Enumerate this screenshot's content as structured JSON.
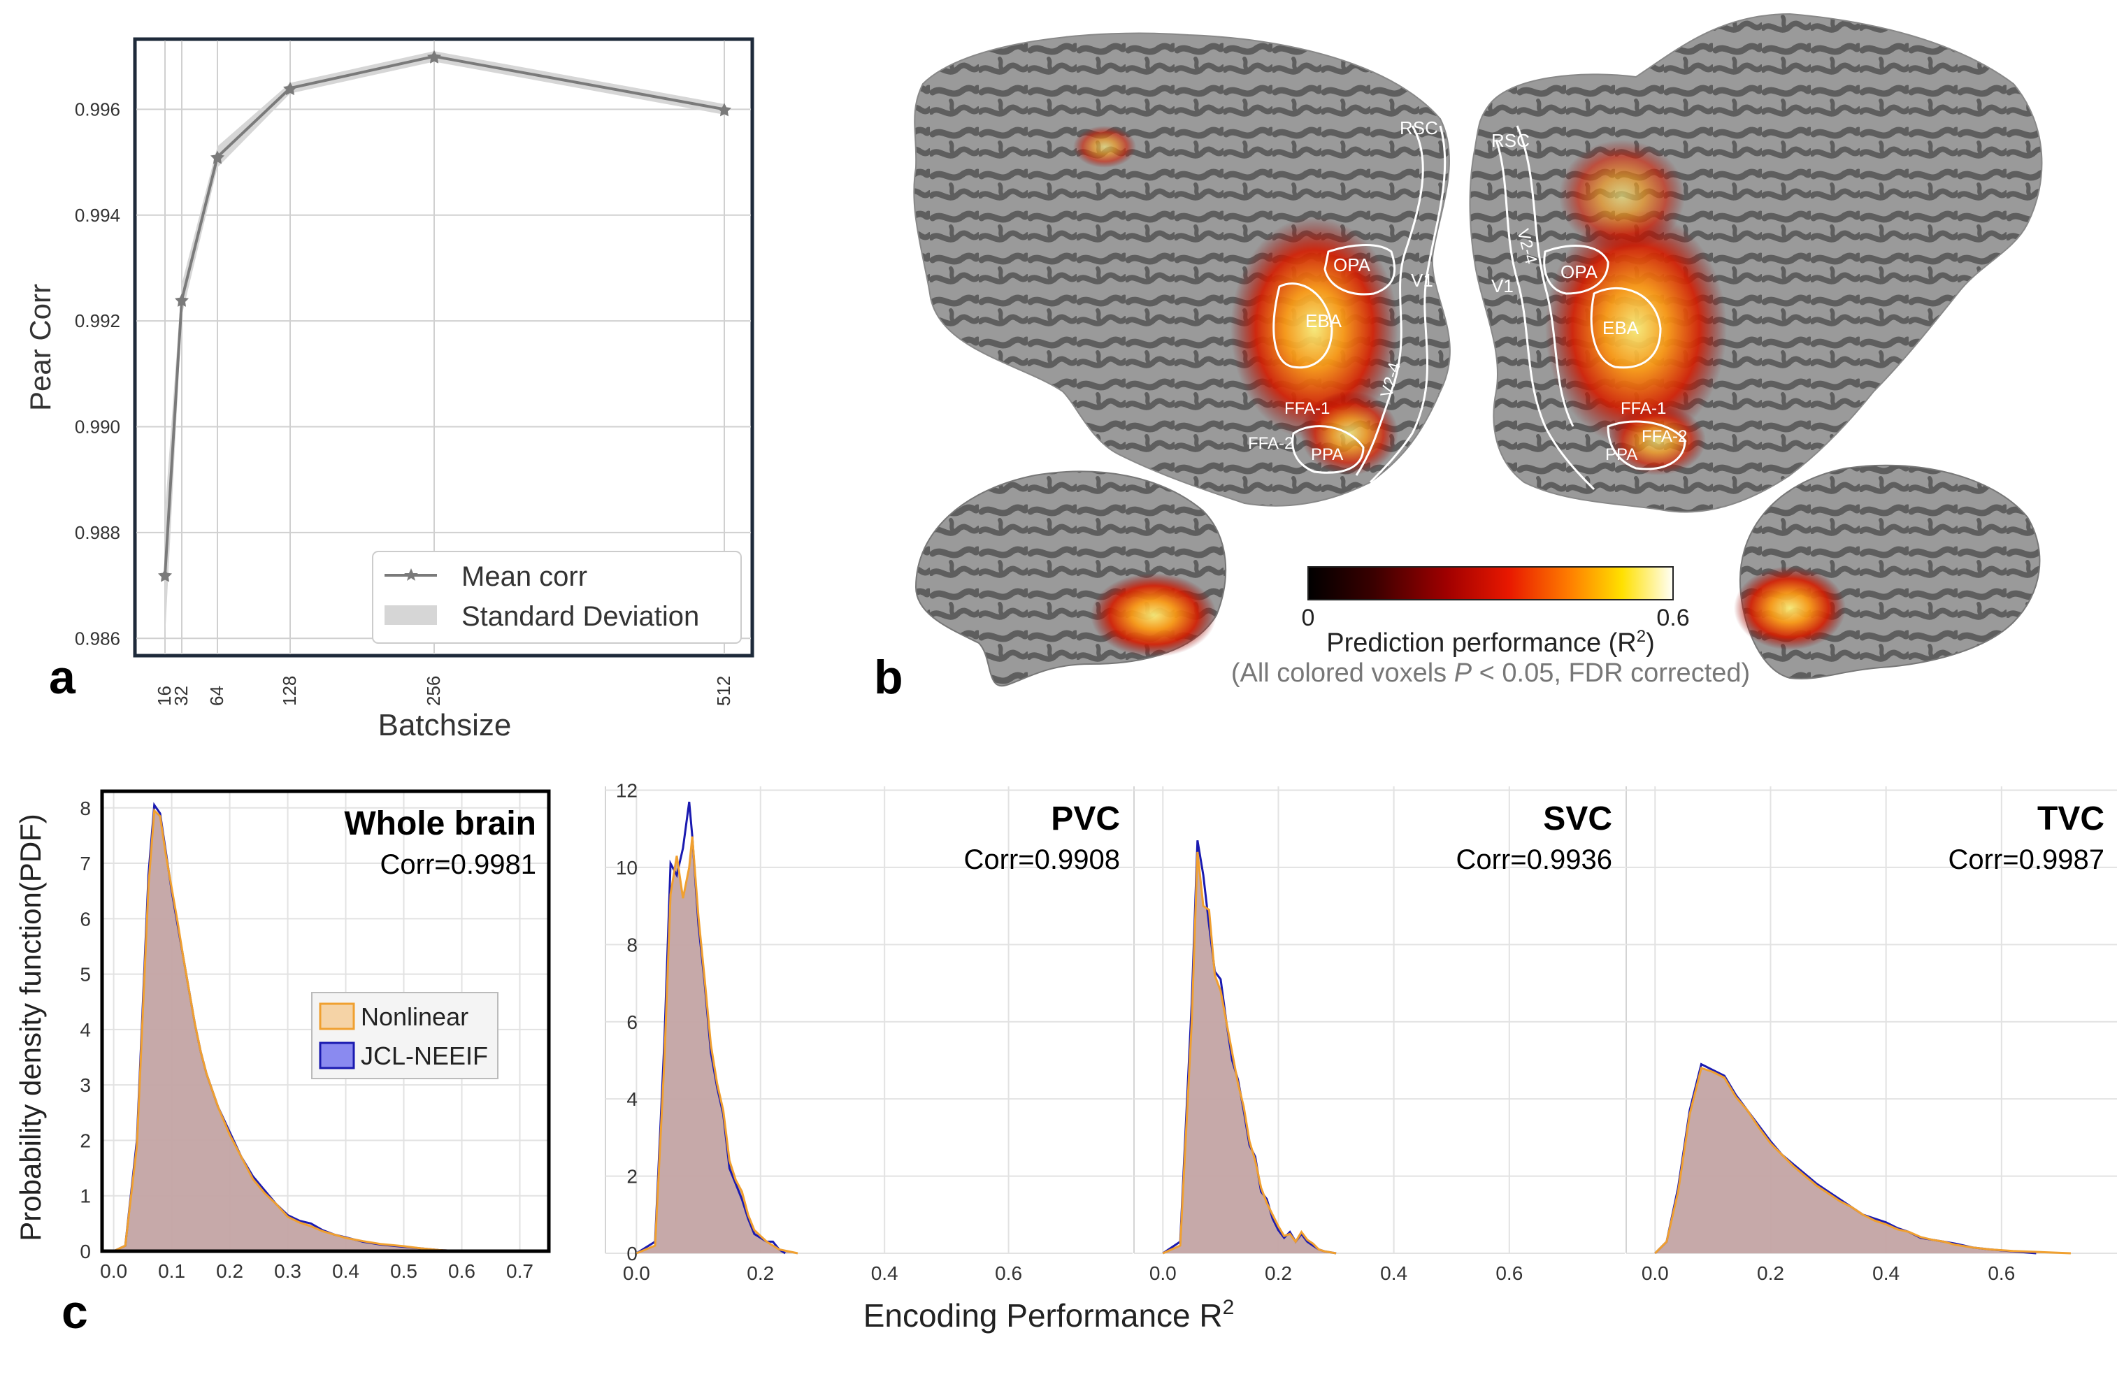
{
  "colors": {
    "nonlinear": "#f0a030",
    "jcl": "#1a1ab0",
    "fill": "#c3a4a4",
    "mean_line": "#7a7a7a",
    "std_band": "#d6d6d6",
    "frame_dark": "#1e2a3a",
    "grid": "#dcdcdc",
    "brain_dark": "#5e5e5e",
    "brain_light": "#9a9a9a"
  },
  "panel_a": {
    "label": "a",
    "legend": {
      "mean": "Mean corr",
      "std": "Standard Deviation"
    }
  },
  "panel_b": {
    "label": "b",
    "rois_left": [
      "RSC",
      "OPA",
      "V1",
      "EBA",
      "V2-4",
      "FFA-1",
      "FFA-2",
      "PPA"
    ],
    "rois_right": [
      "RSC",
      "V2-4",
      "V1",
      "OPA",
      "EBA",
      "FFA-1",
      "FFA-2",
      "PPA"
    ],
    "colorbar": {
      "min": "0",
      "max": "0.6",
      "title": "Prediction performance (R",
      "title_sup": "2",
      "title_end": ")",
      "note_pre": "(All colored voxels ",
      "note_p": "P",
      "note_post": " < 0.05, FDR corrected)"
    }
  },
  "panel_c": {
    "label": "c",
    "ylabel": "Probability density function(PDF)",
    "xlabel": "Encoding Performance R",
    "xlabel_sup": "2",
    "legend": {
      "nonlinear": "Nonlinear",
      "jcl": "JCL-NEEIF"
    },
    "subplots": [
      {
        "title": "Whole brain",
        "corr": "Corr=0.9981"
      },
      {
        "title": "PVC",
        "corr": "Corr=0.9908"
      },
      {
        "title": "SVC",
        "corr": "Corr=0.9936"
      },
      {
        "title": "TVC",
        "corr": "Corr=0.9987"
      }
    ]
  },
  "chart_data": [
    {
      "id": "a",
      "type": "line",
      "title": "",
      "xlabel": "Batchsize",
      "ylabel": "Pear Corr",
      "x": [
        16,
        32,
        64,
        128,
        256,
        512
      ],
      "xticks": [
        "16",
        "32",
        "64",
        "128",
        "256",
        "512"
      ],
      "series": [
        {
          "name": "Mean corr",
          "values": [
            0.9872,
            0.9924,
            0.9951,
            0.9964,
            0.997,
            0.996
          ]
        }
      ],
      "std": [
        0.0012,
        0.0003,
        0.0002,
        0.0001,
        0.0001,
        0.0001
      ],
      "ylim": [
        0.9857,
        0.9973
      ],
      "yticks": [
        0.986,
        0.988,
        0.99,
        0.992,
        0.994,
        0.996
      ],
      "legend_position": "lower-right",
      "grid": true
    },
    {
      "id": "c1",
      "type": "area",
      "title": "Whole brain",
      "xlim": [
        -0.02,
        0.75
      ],
      "ylim": [
        0,
        8.3
      ],
      "xticks": [
        0.0,
        0.1,
        0.2,
        0.3,
        0.4,
        0.5,
        0.6,
        0.7
      ],
      "yticks": [
        0,
        1,
        2,
        3,
        4,
        5,
        6,
        7,
        8
      ],
      "series": [
        {
          "name": "JCL-NEEIF",
          "x": [
            0.0,
            0.02,
            0.04,
            0.06,
            0.07,
            0.08,
            0.09,
            0.1,
            0.11,
            0.12,
            0.13,
            0.14,
            0.15,
            0.16,
            0.18,
            0.2,
            0.22,
            0.24,
            0.26,
            0.28,
            0.3,
            0.32,
            0.34,
            0.36,
            0.38,
            0.4,
            0.43,
            0.46,
            0.5,
            0.53,
            0.56,
            0.6
          ],
          "y": [
            0,
            0.1,
            2.0,
            6.8,
            8.05,
            7.9,
            7.2,
            6.5,
            5.9,
            5.3,
            4.7,
            4.1,
            3.6,
            3.2,
            2.6,
            2.15,
            1.7,
            1.35,
            1.1,
            0.85,
            0.65,
            0.55,
            0.5,
            0.38,
            0.3,
            0.25,
            0.17,
            0.12,
            0.08,
            0.05,
            0.02,
            0
          ]
        },
        {
          "name": "Nonlinear",
          "x": [
            0.0,
            0.02,
            0.04,
            0.06,
            0.07,
            0.08,
            0.09,
            0.1,
            0.11,
            0.12,
            0.13,
            0.14,
            0.15,
            0.16,
            0.18,
            0.2,
            0.22,
            0.24,
            0.26,
            0.28,
            0.3,
            0.32,
            0.34,
            0.36,
            0.38,
            0.4,
            0.43,
            0.46,
            0.5,
            0.53,
            0.56,
            0.6
          ],
          "y": [
            0,
            0.1,
            1.9,
            6.6,
            7.95,
            7.85,
            7.15,
            6.55,
            5.95,
            5.3,
            4.7,
            4.1,
            3.6,
            3.2,
            2.6,
            2.1,
            1.7,
            1.3,
            1.05,
            0.85,
            0.62,
            0.52,
            0.45,
            0.36,
            0.3,
            0.24,
            0.18,
            0.13,
            0.09,
            0.05,
            0.02,
            0
          ]
        }
      ]
    },
    {
      "id": "c2",
      "type": "area",
      "title": "PVC",
      "xlim": [
        -0.05,
        0.8
      ],
      "ylim": [
        0,
        12.1
      ],
      "xticks": [
        0.0,
        0.2,
        0.4,
        0.6
      ],
      "yticks": [
        0,
        2,
        4,
        6,
        8,
        10,
        12
      ],
      "series": [
        {
          "name": "JCL-NEEIF",
          "x": [
            0.0,
            0.03,
            0.045,
            0.055,
            0.065,
            0.075,
            0.085,
            0.09,
            0.1,
            0.11,
            0.12,
            0.13,
            0.14,
            0.15,
            0.16,
            0.17,
            0.18,
            0.19,
            0.2,
            0.21,
            0.22,
            0.23,
            0.24
          ],
          "y": [
            0,
            0.3,
            5.5,
            10.1,
            9.8,
            10.5,
            11.7,
            10.8,
            8.5,
            7.0,
            5.2,
            4.3,
            3.6,
            2.2,
            1.8,
            1.4,
            0.9,
            0.5,
            0.4,
            0.3,
            0.3,
            0.1,
            0
          ]
        },
        {
          "name": "Nonlinear",
          "x": [
            0.0,
            0.03,
            0.045,
            0.055,
            0.065,
            0.075,
            0.085,
            0.09,
            0.1,
            0.11,
            0.12,
            0.13,
            0.14,
            0.15,
            0.16,
            0.17,
            0.18,
            0.19,
            0.2,
            0.21,
            0.22,
            0.23,
            0.26
          ],
          "y": [
            0,
            0.2,
            5.0,
            9.3,
            10.3,
            9.2,
            10.0,
            10.8,
            8.7,
            7.1,
            5.4,
            4.4,
            3.7,
            2.4,
            1.9,
            1.6,
            1.0,
            0.6,
            0.45,
            0.3,
            0.2,
            0.1,
            0
          ]
        }
      ]
    },
    {
      "id": "c3",
      "type": "area",
      "title": "SVC",
      "xlim": [
        -0.05,
        0.8
      ],
      "ylim": [
        0,
        12.1
      ],
      "xticks": [
        0.0,
        0.2,
        0.4,
        0.6
      ],
      "yticks": [
        0,
        2,
        4,
        6,
        8,
        10,
        12
      ],
      "series": [
        {
          "name": "JCL-NEEIF",
          "x": [
            0.0,
            0.03,
            0.05,
            0.06,
            0.07,
            0.08,
            0.09,
            0.1,
            0.11,
            0.12,
            0.13,
            0.14,
            0.15,
            0.16,
            0.17,
            0.18,
            0.19,
            0.2,
            0.21,
            0.22,
            0.23,
            0.24,
            0.25,
            0.26,
            0.27,
            0.28,
            0.3
          ],
          "y": [
            0,
            0.3,
            6.5,
            10.7,
            9.8,
            8.5,
            7.3,
            7.1,
            6.0,
            5.0,
            4.5,
            3.7,
            2.8,
            2.5,
            1.6,
            1.4,
            0.9,
            0.6,
            0.4,
            0.55,
            0.3,
            0.5,
            0.3,
            0.2,
            0.1,
            0.05,
            0
          ]
        },
        {
          "name": "Nonlinear",
          "x": [
            0.0,
            0.03,
            0.05,
            0.06,
            0.07,
            0.08,
            0.09,
            0.1,
            0.11,
            0.12,
            0.13,
            0.14,
            0.15,
            0.16,
            0.17,
            0.18,
            0.19,
            0.2,
            0.21,
            0.22,
            0.23,
            0.24,
            0.25,
            0.26,
            0.27,
            0.28,
            0.3
          ],
          "y": [
            0,
            0.2,
            6.0,
            10.4,
            9.0,
            8.9,
            7.2,
            6.8,
            6.0,
            5.2,
            4.4,
            3.8,
            2.9,
            2.4,
            1.7,
            1.3,
            1.0,
            0.7,
            0.45,
            0.5,
            0.3,
            0.55,
            0.35,
            0.25,
            0.1,
            0.05,
            0
          ]
        }
      ]
    },
    {
      "id": "c4",
      "type": "area",
      "title": "TVC",
      "xlim": [
        -0.05,
        0.8
      ],
      "ylim": [
        0,
        12.1
      ],
      "xticks": [
        0.0,
        0.2,
        0.4,
        0.6
      ],
      "yticks": [
        0,
        2,
        4,
        6,
        8,
        10,
        12
      ],
      "series": [
        {
          "name": "JCL-NEEIF",
          "x": [
            0.0,
            0.02,
            0.04,
            0.06,
            0.08,
            0.1,
            0.12,
            0.14,
            0.16,
            0.18,
            0.2,
            0.22,
            0.24,
            0.26,
            0.28,
            0.3,
            0.32,
            0.34,
            0.36,
            0.38,
            0.4,
            0.42,
            0.44,
            0.46,
            0.48,
            0.5,
            0.52,
            0.55,
            0.58,
            0.62,
            0.66
          ],
          "y": [
            0,
            0.3,
            1.7,
            3.7,
            4.9,
            4.75,
            4.6,
            4.1,
            3.7,
            3.3,
            2.9,
            2.55,
            2.3,
            2.05,
            1.8,
            1.6,
            1.4,
            1.2,
            1.0,
            0.9,
            0.8,
            0.65,
            0.55,
            0.4,
            0.35,
            0.3,
            0.25,
            0.15,
            0.1,
            0.05,
            0
          ]
        },
        {
          "name": "Nonlinear",
          "x": [
            0.0,
            0.02,
            0.04,
            0.06,
            0.08,
            0.1,
            0.12,
            0.14,
            0.16,
            0.18,
            0.2,
            0.22,
            0.24,
            0.26,
            0.28,
            0.3,
            0.32,
            0.34,
            0.36,
            0.38,
            0.4,
            0.42,
            0.44,
            0.46,
            0.48,
            0.5,
            0.52,
            0.55,
            0.58,
            0.62,
            0.72
          ],
          "y": [
            0,
            0.3,
            1.6,
            3.6,
            4.8,
            4.7,
            4.55,
            4.05,
            3.7,
            3.25,
            2.85,
            2.55,
            2.25,
            2.0,
            1.75,
            1.55,
            1.35,
            1.2,
            1.0,
            0.85,
            0.75,
            0.62,
            0.55,
            0.42,
            0.35,
            0.3,
            0.22,
            0.15,
            0.1,
            0.06,
            0
          ]
        }
      ]
    }
  ]
}
